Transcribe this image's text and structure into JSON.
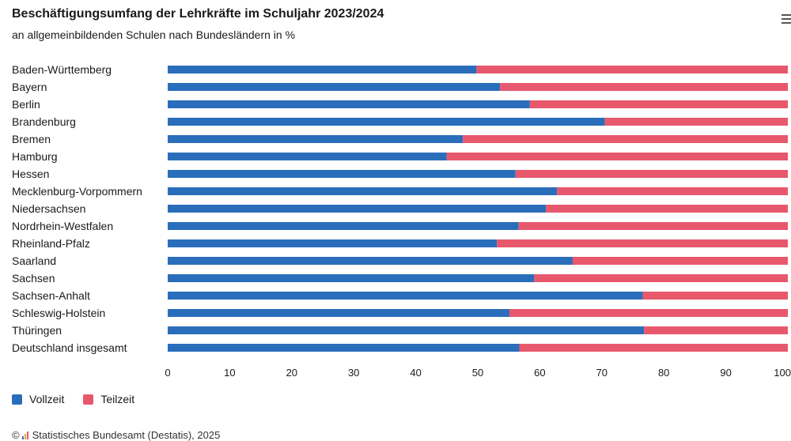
{
  "header": {
    "title": "Beschäftigungsumfang der Lehrkräfte im Schuljahr 2023/2024",
    "subtitle": "an allgemeinbildenden Schulen nach Bundesländern in %",
    "menu_icon": "hamburger-menu-icon"
  },
  "chart_data": {
    "type": "bar",
    "orientation": "horizontal",
    "stacked": true,
    "categories": [
      "Baden-Württemberg",
      "Bayern",
      "Berlin",
      "Brandenburg",
      "Bremen",
      "Hamburg",
      "Hessen",
      "Mecklenburg-Vorpommern",
      "Niedersachsen",
      "Nordrhein-Westfalen",
      "Rheinland-Pfalz",
      "Saarland",
      "Sachsen",
      "Sachsen-Anhalt",
      "Schleswig-Holstein",
      "Thüringen",
      "Deutschland insgesamt"
    ],
    "series": [
      {
        "name": "Vollzeit",
        "color": "#2a6ebb",
        "values": [
          49.8,
          53.6,
          58.4,
          70.5,
          47.6,
          45.0,
          56.1,
          62.8,
          61.0,
          56.6,
          53.1,
          65.3,
          59.1,
          76.6,
          55.1,
          76.8,
          56.7
        ]
      },
      {
        "name": "Teilzeit",
        "color": "#e8586d",
        "values": [
          50.2,
          46.4,
          41.6,
          29.5,
          52.4,
          55.0,
          43.9,
          37.2,
          39.0,
          43.4,
          46.9,
          34.7,
          40.9,
          23.4,
          44.9,
          23.2,
          43.3
        ]
      }
    ],
    "xlim": [
      0,
      100
    ],
    "xticks": [
      "0",
      "10",
      "20",
      "30",
      "40",
      "50",
      "60",
      "70",
      "80",
      "90",
      "100"
    ],
    "grid": false,
    "legend_position": "bottom-left"
  },
  "legend": {
    "items": [
      {
        "label": "Vollzeit",
        "color": "#2a6ebb"
      },
      {
        "label": "Teilzeit",
        "color": "#e8586d"
      }
    ]
  },
  "footer": {
    "credit_prefix": "©",
    "credit_text": "Statistisches Bundesamt (Destatis), 2025",
    "logo_icon": "destatis-logo-icon"
  }
}
